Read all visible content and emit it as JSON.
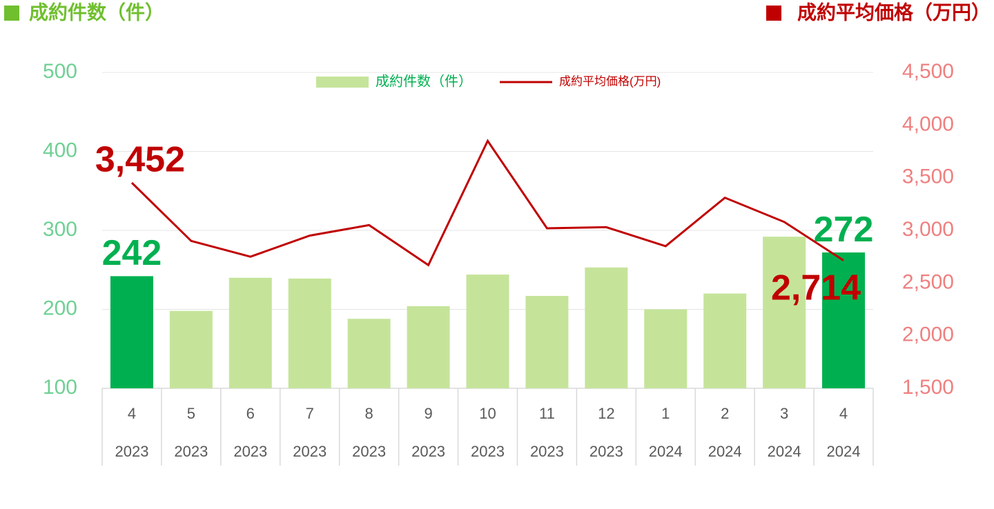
{
  "chart_data": {
    "type": "bar_line",
    "y_label": "成約件数（件）",
    "y2_label": "成約平均価格（万円）",
    "categories": [
      "4",
      "5",
      "6",
      "7",
      "8",
      "9",
      "10",
      "11",
      "12",
      "1",
      "2",
      "3",
      "4"
    ],
    "category_years": [
      "2023",
      "2023",
      "2023",
      "2023",
      "2023",
      "2023",
      "2023",
      "2023",
      "2023",
      "2024",
      "2024",
      "2024",
      "2024"
    ],
    "series": [
      {
        "name": "成約件数（件）",
        "type": "bar",
        "color": "#c5e49a",
        "colors": [
          "#00b050",
          "#c5e49a",
          "#c5e49a",
          "#c5e49a",
          "#c5e49a",
          "#c5e49a",
          "#c5e49a",
          "#c5e49a",
          "#c5e49a",
          "#c5e49a",
          "#c5e49a",
          "#c5e49a",
          "#00b050"
        ],
        "values": [
          242,
          198,
          240,
          239,
          188,
          204,
          244,
          217,
          253,
          200,
          220,
          292,
          272
        ],
        "value_labels": [
          "242",
          null,
          null,
          null,
          null,
          null,
          null,
          null,
          null,
          null,
          null,
          null,
          "272"
        ]
      },
      {
        "name": "成約平均価格(万円)",
        "type": "line",
        "axis": "y2",
        "color": "#c00000",
        "values": [
          3452,
          2900,
          2750,
          2950,
          3050,
          2670,
          3850,
          3020,
          3030,
          2850,
          3310,
          3080,
          2714
        ],
        "value_labels": [
          "3,452",
          null,
          null,
          null,
          null,
          null,
          null,
          null,
          null,
          null,
          null,
          null,
          "2,714"
        ]
      }
    ],
    "ylim": [
      100,
      500
    ],
    "yticks": [
      100,
      200,
      300,
      400,
      500
    ],
    "y2lim": [
      1500,
      4500
    ],
    "y2ticks": [
      {
        "value": 1500,
        "label": "1,500"
      },
      {
        "value": 2000,
        "label": "2,000"
      },
      {
        "value": 2500,
        "label": "2,500"
      },
      {
        "value": 3000,
        "label": "3,000"
      },
      {
        "value": 3500,
        "label": "3,500"
      },
      {
        "value": 4000,
        "label": "4,000"
      },
      {
        "value": 4500,
        "label": "4,500"
      }
    ],
    "grid": true
  }
}
